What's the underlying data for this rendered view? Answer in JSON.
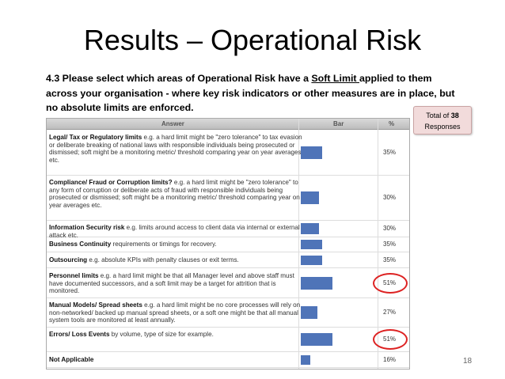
{
  "slide": {
    "title": "Results – Operational Risk",
    "question_before": "4.3 Please select which areas of Operational Risk have a ",
    "question_underlined": "Soft Limit ",
    "question_after": "applied to them across your organisation - where key risk indicators or other measures are in place, but no absolute limits are enforced.",
    "total_prefix": "Total of ",
    "total_value": "38",
    "total_suffix": "Responses",
    "page_number": "18"
  },
  "table": {
    "header_answer": "Answer",
    "header_bar": "Bar",
    "header_pct": "%"
  },
  "chart_data": {
    "type": "bar",
    "orientation": "horizontal",
    "categories": [
      "Legal/ Tax or Regulatory limits",
      "Compliance/ Fraud or Corruption limits?",
      "Information Security risk",
      "Business Continuity",
      "Outsourcing",
      "Personnel limits",
      "Manual Models/ Spread sheets",
      "Errors/ Loss Events",
      "Not Applicable"
    ],
    "rows": [
      {
        "name": "Legal/ Tax or Regulatory limits",
        "desc": " e.g. a hard limit might be \"zero tolerance\" to tax evasion or deliberate breaking of national laws with responsible individuals being prosecuted or dismissed; soft might be a monitoring metric/ threshold comparing year on year averages etc.",
        "value": 35,
        "label": "35%",
        "highlighted": false
      },
      {
        "name": "Compliance/ Fraud or Corruption limits?",
        "desc": " e.g. a hard limit might be \"zero tolerance\" to any form of corruption or deliberate acts of fraud with responsible individuals being prosecuted or dismissed; soft might be a monitoring metric/ threshold comparing year on year averages etc.",
        "value": 30,
        "label": "30%",
        "highlighted": false
      },
      {
        "name": "Information Security risk",
        "desc": " e.g. limits around access to client data via internal or external attack etc.",
        "value": 30,
        "label": "30%",
        "highlighted": false
      },
      {
        "name": "Business Continuity",
        "desc": " requirements or timings for recovery.",
        "value": 35,
        "label": "35%",
        "highlighted": false
      },
      {
        "name": "Outsourcing",
        "desc": " e.g. absolute KPIs with penalty clauses or exit terms.",
        "value": 35,
        "label": "35%",
        "highlighted": false
      },
      {
        "name": "Personnel limits",
        "desc": " e.g. a hard limit might be that all Manager level and above staff must have documented successors, and a soft limit may be a target for attrition that is monitored.",
        "value": 51,
        "label": "51%",
        "highlighted": true
      },
      {
        "name": "Manual Models/ Spread sheets",
        "desc": " e.g. a hard limit might be no core processes will rely on non-networked/ backed up manual spread sheets, or a soft one might be that all manual system tools are monitored at least annually.",
        "value": 27,
        "label": "27%",
        "highlighted": false
      },
      {
        "name": "Errors/ Loss Events",
        "desc": " by volume, type of size for example.",
        "value": 51,
        "label": "51%",
        "highlighted": true
      },
      {
        "name": "Not Applicable",
        "desc": "",
        "value": 16,
        "label": "16%",
        "highlighted": false
      }
    ],
    "xlim": [
      0,
      100
    ],
    "bar_color": "#4f74b8",
    "highlight_color": "#dd2222"
  }
}
